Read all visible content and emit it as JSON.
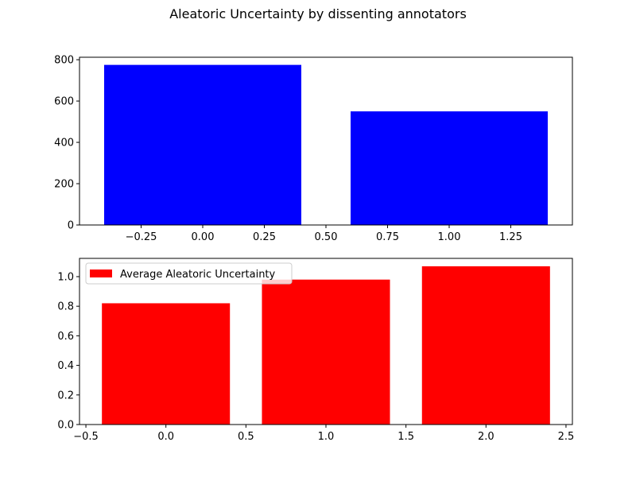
{
  "figure_title": "Aleatoric Uncertainty by dissenting annotators",
  "chart_data": [
    {
      "type": "bar",
      "x": [
        0,
        1
      ],
      "values": [
        775,
        550
      ],
      "bar_width": 0.8,
      "color": "#0000ff",
      "xlim": [
        -0.5,
        1.5
      ],
      "ylim": [
        0,
        812
      ],
      "xticks": [
        -0.25,
        0.0,
        0.25,
        0.5,
        0.75,
        1.0,
        1.25
      ],
      "xtick_labels": [
        "−0.25",
        "0.00",
        "0.25",
        "0.50",
        "0.75",
        "1.00",
        "1.25"
      ],
      "yticks": [
        0,
        200,
        400,
        600,
        800
      ],
      "ytick_labels": [
        "0",
        "200",
        "400",
        "600",
        "800"
      ],
      "grid": false,
      "legend": null
    },
    {
      "type": "bar",
      "x": [
        0,
        1,
        2
      ],
      "values": [
        0.82,
        0.98,
        1.07
      ],
      "bar_width": 0.8,
      "color": "#ff0000",
      "xlim": [
        -0.54,
        2.54
      ],
      "ylim": [
        0,
        1.1235
      ],
      "xticks": [
        -0.5,
        0.0,
        0.5,
        1.0,
        1.5,
        2.0,
        2.5
      ],
      "xtick_labels": [
        "−0.5",
        "0.0",
        "0.5",
        "1.0",
        "1.5",
        "2.0",
        "2.5"
      ],
      "yticks": [
        0.0,
        0.2,
        0.4,
        0.6,
        0.8,
        1.0
      ],
      "ytick_labels": [
        "0.0",
        "0.2",
        "0.4",
        "0.6",
        "0.8",
        "1.0"
      ],
      "grid": false,
      "legend": {
        "placement": "upper left",
        "entries": [
          "Average Aleatoric Uncertainty"
        ]
      }
    }
  ]
}
